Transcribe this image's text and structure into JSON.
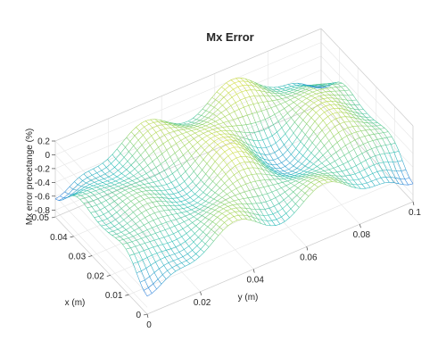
{
  "chart_data": {
    "type": "surface-mesh",
    "title": "Mx Error",
    "xlabel": "x (m)",
    "ylabel": "y (m)",
    "zlabel": "Mx error precetange (%)",
    "xlim": [
      0,
      0.05
    ],
    "ylim": [
      0,
      0.1
    ],
    "zlim": [
      -0.9,
      0.2
    ],
    "x_ticks": [
      "0",
      "0.01",
      "0.02",
      "0.03",
      "0.04",
      "0.05"
    ],
    "y_ticks": [
      "0",
      "0.02",
      "0.04",
      "0.06",
      "0.08",
      "0.1"
    ],
    "z_ticks": [
      "0.2",
      "0",
      "-0.2",
      "-0.4",
      "-0.6",
      "-0.8"
    ],
    "colormap": "parula",
    "colors": {
      "low": "#6a5fd6",
      "mid": "#37c8b0",
      "high": "#f2e23a"
    },
    "grid": true
  }
}
